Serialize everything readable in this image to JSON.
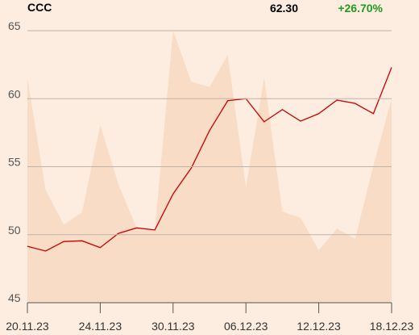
{
  "chart_data": {
    "type": "line",
    "title": "CCC",
    "last_price": "62.30",
    "change": "+26.70%",
    "change_color": "#1e9a1e",
    "categories": [
      "20.11.23",
      null,
      null,
      null,
      "24.11.23",
      null,
      null,
      null,
      "30.11.23",
      null,
      null,
      null,
      "06.12.23",
      null,
      null,
      null,
      "12.12.23",
      null,
      null,
      null,
      "18.12.23"
    ],
    "series": [
      {
        "type": "area",
        "color": "#f8dcc5",
        "values": [
          61.5,
          53.3,
          50.75,
          51.65,
          58.05,
          53.7,
          50.5,
          50.35,
          65,
          61.25,
          60.85,
          63.2,
          53.5,
          61.55,
          51.7,
          51.25,
          48.85,
          50.45,
          49.7,
          55.1,
          60.0
        ]
      },
      {
        "type": "line",
        "color": "#cc0000",
        "values": [
          49.15,
          48.8,
          49.5,
          49.55,
          49.05,
          50.1,
          50.5,
          50.35,
          53.0,
          54.9,
          57.65,
          59.85,
          60.0,
          58.3,
          59.2,
          58.35,
          58.9,
          59.9,
          59.65,
          58.9,
          62.3
        ]
      }
    ],
    "ylim": [
      45,
      65
    ],
    "yticks": [
      45,
      50,
      55,
      60,
      65
    ],
    "grid": true
  }
}
